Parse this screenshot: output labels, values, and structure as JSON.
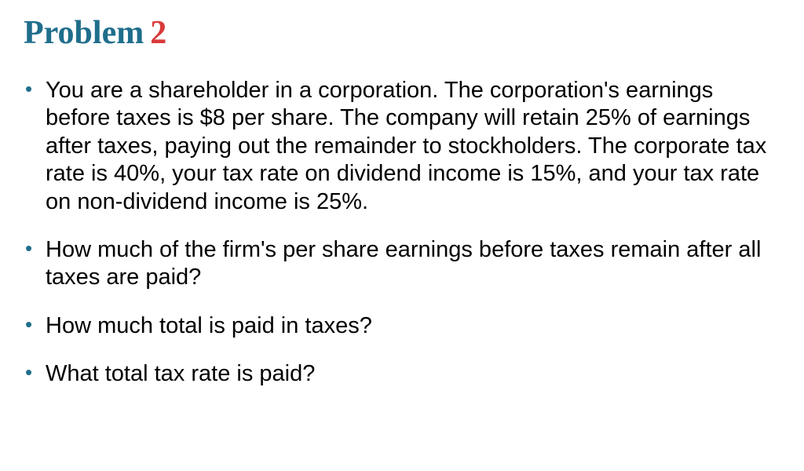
{
  "title": {
    "word": "Problem",
    "number": "2",
    "word_color": "#1f6e8c",
    "number_color": "#d93a3a",
    "font_family": "Times New Roman",
    "font_weight": "bold",
    "fontsize": 42
  },
  "body": {
    "fontsize": 29,
    "text_color": "#000000",
    "bullet_color": "#1f6e8c",
    "background_color": "#ffffff"
  },
  "bullets": [
    "You are a shareholder in a corporation. The corporation's earnings before taxes is $8 per share. The company will retain 25% of earnings after taxes, paying out the remainder to stockholders. The corporate tax rate is 40%, your tax rate on dividend income is 15%, and your tax rate on non-dividend income is 25%.",
    "How much of the firm's per share earnings before taxes remain after all taxes are paid?",
    "How much total is paid in taxes?",
    "What total tax rate is paid?"
  ]
}
